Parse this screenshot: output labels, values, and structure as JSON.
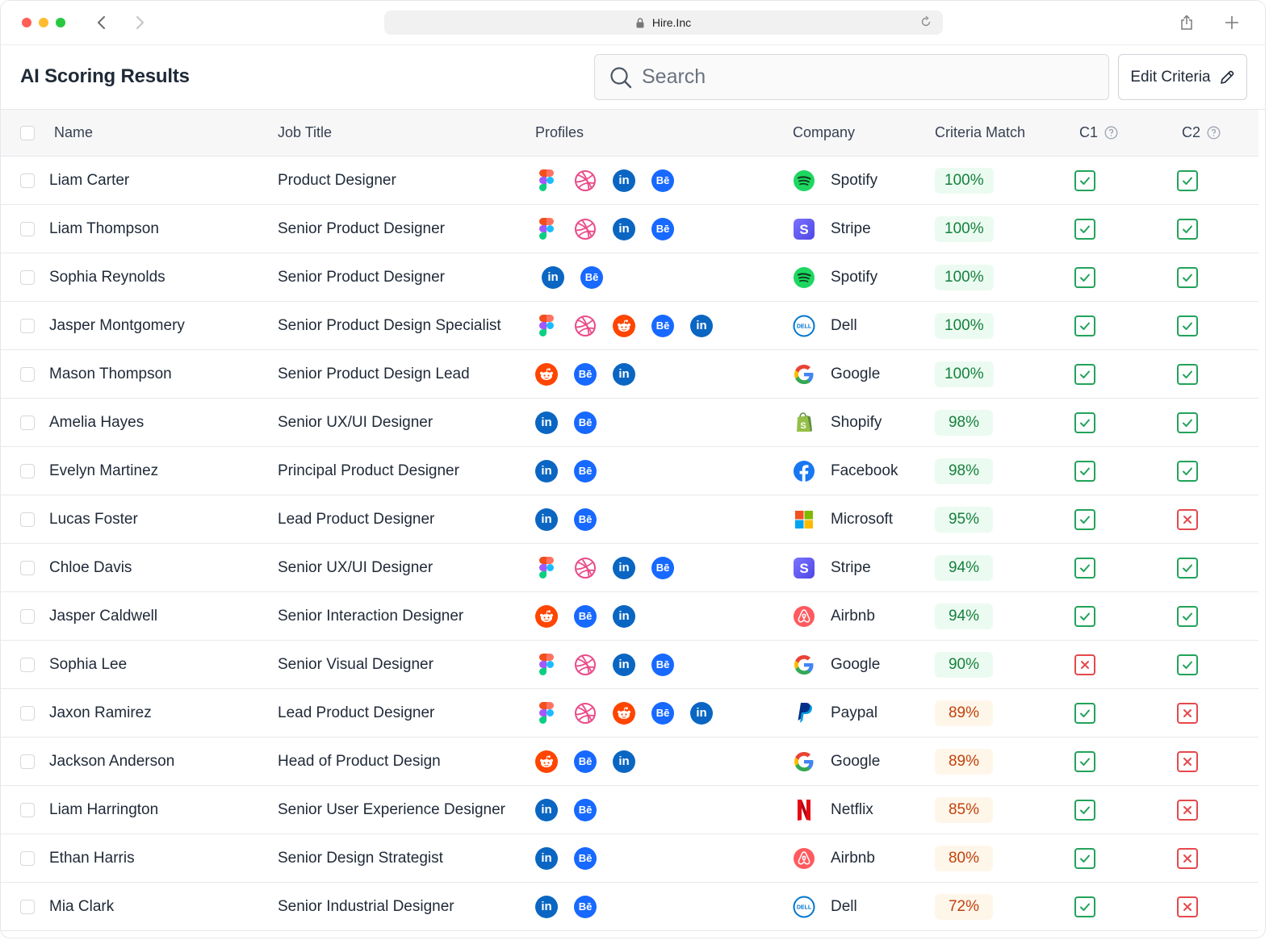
{
  "browser": {
    "url": "Hire.Inc"
  },
  "header": {
    "title": "AI Scoring Results",
    "search_placeholder": "Search",
    "edit_label": "Edit Criteria"
  },
  "columns": {
    "name": "Name",
    "job_title": "Job Title",
    "profiles": "Profiles",
    "company": "Company",
    "match": "Criteria Match",
    "c1": "C1",
    "c2": "C2"
  },
  "colors": {
    "linkedin": "#0a66c2",
    "behance": "#1769ff",
    "reddit": "#ff4500",
    "dribbble": "#ea4c89",
    "match_high_bg": "#ecfbf1",
    "match_high_text": "#15803d",
    "match_mid_bg": "#fff6ea",
    "match_mid_text": "#c2410c",
    "pass": "#22a35a",
    "fail": "#e5484d"
  },
  "rows": [
    {
      "name": "Liam Carter",
      "title": "Product Designer",
      "profiles": [
        "figma",
        "dribbble",
        "linkedin",
        "behance"
      ],
      "company": "Spotify",
      "logo": "spotify",
      "match": "100%",
      "c1": true,
      "c2": true
    },
    {
      "name": "Liam Thompson",
      "title": "Senior Product Designer",
      "profiles": [
        "figma",
        "dribbble",
        "linkedin",
        "behance"
      ],
      "company": "Stripe",
      "logo": "stripe",
      "match": "100%",
      "c1": true,
      "c2": true
    },
    {
      "name": "Sophia Reynolds",
      "title": "Senior Product Designer",
      "profiles": [
        "linkedin",
        "behance"
      ],
      "company": "Spotify",
      "logo": "spotify",
      "match": "100%",
      "c1": true,
      "c2": true,
      "shift": true
    },
    {
      "name": "Jasper Montgomery",
      "title": "Senior Product Design Specialist",
      "profiles": [
        "figma",
        "dribbble",
        "reddit",
        "behance",
        "linkedin"
      ],
      "company": "Dell",
      "logo": "dell",
      "match": "100%",
      "c1": true,
      "c2": true
    },
    {
      "name": "Mason Thompson",
      "title": "Senior Product Design Lead",
      "profiles": [
        "reddit",
        "behance",
        "linkedin"
      ],
      "company": "Google",
      "logo": "google",
      "match": "100%",
      "c1": true,
      "c2": true
    },
    {
      "name": "Amelia Hayes",
      "title": "Senior UX/UI Designer",
      "profiles": [
        "linkedin",
        "behance"
      ],
      "company": "Shopify",
      "logo": "shopify",
      "match": "98%",
      "c1": true,
      "c2": true
    },
    {
      "name": "Evelyn Martinez",
      "title": "Principal Product Designer",
      "profiles": [
        "linkedin",
        "behance"
      ],
      "company": "Facebook",
      "logo": "facebook",
      "match": "98%",
      "c1": true,
      "c2": true
    },
    {
      "name": "Lucas Foster",
      "title": "Lead Product Designer",
      "profiles": [
        "linkedin",
        "behance"
      ],
      "company": "Microsoft",
      "logo": "microsoft",
      "match": "95%",
      "c1": true,
      "c2": false
    },
    {
      "name": "Chloe Davis",
      "title": "Senior UX/UI Designer",
      "profiles": [
        "figma",
        "dribbble",
        "linkedin",
        "behance"
      ],
      "company": "Stripe",
      "logo": "stripe",
      "match": "94%",
      "c1": true,
      "c2": true
    },
    {
      "name": "Jasper Caldwell",
      "title": "Senior Interaction Designer",
      "profiles": [
        "reddit",
        "behance",
        "linkedin"
      ],
      "company": "Airbnb",
      "logo": "airbnb",
      "match": "94%",
      "c1": true,
      "c2": true
    },
    {
      "name": "Sophia Lee",
      "title": "Senior Visual Designer",
      "profiles": [
        "figma",
        "dribbble",
        "linkedin",
        "behance"
      ],
      "company": "Google",
      "logo": "google",
      "match": "90%",
      "c1": false,
      "c2": true
    },
    {
      "name": "Jaxon Ramirez",
      "title": "Lead Product Designer",
      "profiles": [
        "figma",
        "dribbble",
        "reddit",
        "behance",
        "linkedin"
      ],
      "company": "Paypal",
      "logo": "paypal",
      "match": "89%",
      "c1": true,
      "c2": false
    },
    {
      "name": "Jackson Anderson",
      "title": "Head of Product Design",
      "profiles": [
        "reddit",
        "behance",
        "linkedin"
      ],
      "company": "Google",
      "logo": "google",
      "match": "89%",
      "c1": true,
      "c2": false
    },
    {
      "name": "Liam Harrington",
      "title": "Senior User Experience Designer",
      "profiles": [
        "linkedin",
        "behance"
      ],
      "company": "Netflix",
      "logo": "netflix",
      "match": "85%",
      "c1": true,
      "c2": false
    },
    {
      "name": "Ethan Harris",
      "title": "Senior Design Strategist",
      "profiles": [
        "linkedin",
        "behance"
      ],
      "company": "Airbnb",
      "logo": "airbnb",
      "match": "80%",
      "c1": true,
      "c2": false
    },
    {
      "name": "Mia Clark",
      "title": "Senior Industrial Designer",
      "profiles": [
        "linkedin",
        "behance"
      ],
      "company": "Dell",
      "logo": "dell",
      "match": "72%",
      "c1": true,
      "c2": false
    }
  ]
}
